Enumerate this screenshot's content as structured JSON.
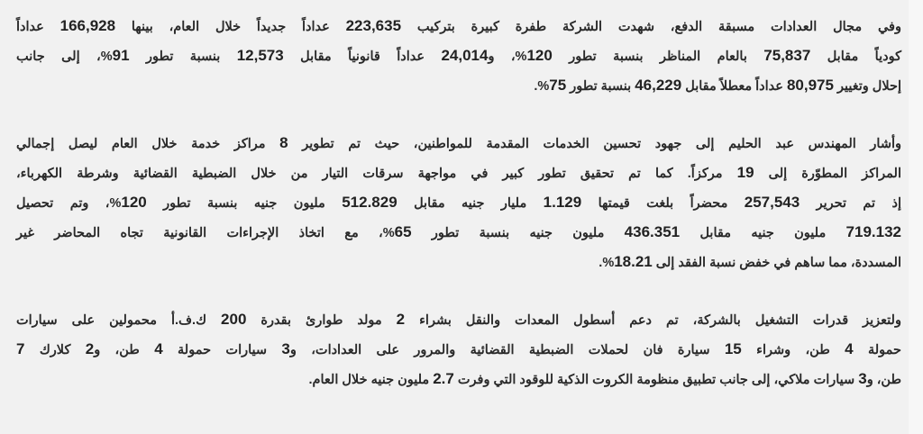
{
  "article": {
    "paragraphs": [
      {
        "lines": [
          "وفي مجال العدادات مسبقة الدفع، شهدت الشركة طفرة كبيرة بتركيب 223,635 عداداً جديداً خلال العام، بينها 166,928 عداداً",
          "كودياً مقابل 75,837 بالعام المناظر بنسبة تطور 120%، و24,014 عداداً قانونياً مقابل 12,573 بنسبة تطور 91%، إلى جانب",
          "إحلال وتغيير 80,975 عداداً معطلاً مقابل 46,229 بنسبة تطور 75%."
        ]
      },
      {
        "lines": [
          "وأشار المهندس عبد الحليم إلى جهود تحسين الخدمات المقدمة للمواطنين، حيث تم تطوير 8 مراكز خدمة خلال العام ليصل إجمالي",
          "المراكز المطوّرة إلى 19 مركزاً. كما تم تحقيق تطور كبير في مواجهة سرقات التيار من خلال الضبطية القضائية وشرطة الكهرباء،",
          "إذ تم تحرير 257,543 محضراً بلغت قيمتها 1.129 مليار جنيه مقابل 512.829 مليون جنيه بنسبة تطور 120%، وتم تحصيل",
          "719.132 مليون جنيه مقابل 436.351 مليون جنيه بنسبة تطور 65%، مع اتخاذ الإجراءات القانونية تجاه المحاضر غير",
          "المسددة، مما ساهم في خفض نسبة الفقد إلى 18.21%."
        ]
      },
      {
        "lines": [
          "ولتعزيز قدرات التشغيل بالشركة، تم دعم أسطول المعدات والنقل بشراء 2 مولد طوارئ بقدرة 200 ك.ف.أ محمولين على سيارات",
          "حمولة 4 طن، وشراء 15 سيارة فان لحملات الضبطية القضائية والمرور على العدادات، و3 سيارات حمولة 4 طن، و2 كلارك 7",
          "طن، و3 سيارات ملاكي، إلى جانب تطبيق منظومة الكروت الذكية للوقود التي وفرت 2.7 مليون جنيه خلال العام."
        ]
      }
    ]
  }
}
